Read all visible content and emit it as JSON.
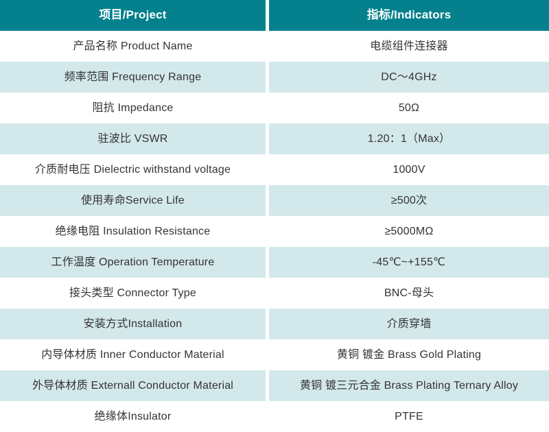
{
  "table": {
    "header": {
      "project": "项目/Project",
      "indicators": "指标/Indicators"
    },
    "rows": [
      {
        "project": "产品名称 Product Name",
        "indicator": "电缆组件连接器"
      },
      {
        "project": "频率范围 Frequency Range",
        "indicator": "DC～4GHz"
      },
      {
        "project": "阻抗 Impedance",
        "indicator": "50Ω"
      },
      {
        "project": "驻波比 VSWR",
        "indicator": "1.20：1（Max）"
      },
      {
        "project": "介质耐电压 Dielectric withstand voltage",
        "indicator": "1000V"
      },
      {
        "project": "使用寿命Service Life",
        "indicator": "≥500次"
      },
      {
        "project": "绝缘电阻 Insulation Resistance",
        "indicator": "≥5000MΩ"
      },
      {
        "project": "工作温度 Operation Temperature",
        "indicator": "-45℃~+155℃"
      },
      {
        "project": "接头类型  Connector Type",
        "indicator": "BNC-母头"
      },
      {
        "project": "安装方式Installation",
        "indicator": "介质穿墙"
      },
      {
        "project": "内导体材质 Inner Conductor Material",
        "indicator": "黄铜 镀金 Brass Gold Plating"
      },
      {
        "project": "外导体材质 Externall Conductor Material",
        "indicator": "黄铜 镀三元合金 Brass Plating Ternary Alloy"
      },
      {
        "project": "绝缘体Insulator",
        "indicator": "PTFE"
      }
    ]
  },
  "colors": {
    "header_bg": "#04818D",
    "header_text": "#FFFFFF",
    "row_alt_bg": "#D3E8EA",
    "row_bg": "#FFFFFF",
    "body_text": "#333333"
  }
}
